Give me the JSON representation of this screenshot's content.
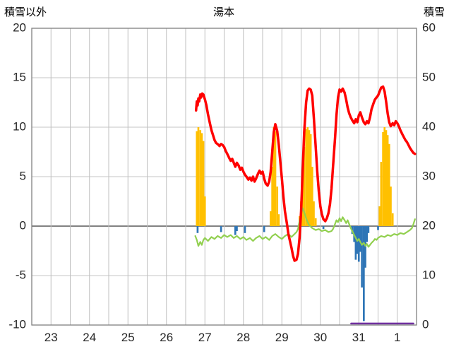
{
  "chart_data": {
    "type": "line",
    "title": "湯本",
    "left_axis": {
      "label": "積雪以外",
      "min": -10,
      "max": 20,
      "ticks": [
        20,
        15,
        10,
        5,
        0,
        -5,
        -10
      ]
    },
    "right_axis": {
      "label": "積雪",
      "min": 0,
      "max": 60,
      "ticks": [
        60,
        50,
        40,
        30,
        20,
        10,
        0
      ]
    },
    "x_axis": {
      "min": 23,
      "max": 33,
      "tick_labels": [
        "23",
        "24",
        "25",
        "26",
        "27",
        "28",
        "29",
        "30",
        "31",
        "1"
      ],
      "gridline_step": 0.5
    },
    "series": [
      {
        "name": "sunshine-bars",
        "type": "bar",
        "color": "#FFC000",
        "points": [
          [
            27.29,
            9.6
          ],
          [
            27.33,
            10.0
          ],
          [
            27.38,
            9.7
          ],
          [
            27.42,
            9.4
          ],
          [
            27.46,
            8.6
          ],
          [
            27.5,
            3.0
          ],
          [
            29.21,
            1.5
          ],
          [
            29.25,
            6.0
          ],
          [
            29.29,
            10.0
          ],
          [
            29.33,
            9.6
          ],
          [
            29.38,
            4.0
          ],
          [
            29.42,
            1.2
          ],
          [
            29.96,
            1.0
          ],
          [
            30.0,
            2.5
          ],
          [
            30.04,
            5.0
          ],
          [
            30.08,
            8.0
          ],
          [
            30.13,
            9.8
          ],
          [
            30.17,
            10.0
          ],
          [
            30.21,
            9.7
          ],
          [
            30.25,
            9.3
          ],
          [
            30.29,
            6.0
          ],
          [
            30.33,
            2.5
          ],
          [
            30.38,
            0.8
          ],
          [
            32.04,
            2.0
          ],
          [
            32.08,
            6.5
          ],
          [
            32.13,
            9.5
          ],
          [
            32.17,
            10.0
          ],
          [
            32.21,
            9.7
          ],
          [
            32.25,
            9.2
          ],
          [
            32.29,
            8.3
          ],
          [
            32.33,
            4.0
          ],
          [
            32.38,
            1.3
          ]
        ]
      },
      {
        "name": "precipitation-bars",
        "type": "bar",
        "color": "#2E75B6",
        "points": [
          [
            27.31,
            -0.7
          ],
          [
            27.92,
            -0.6
          ],
          [
            28.29,
            -0.9
          ],
          [
            28.33,
            -0.5
          ],
          [
            28.54,
            -0.7
          ],
          [
            29.04,
            -0.6
          ],
          [
            30.58,
            -0.3
          ],
          [
            31.33,
            -0.8
          ],
          [
            31.38,
            -1.6
          ],
          [
            31.42,
            -3.4
          ],
          [
            31.46,
            -2.8
          ],
          [
            31.5,
            -3.6
          ],
          [
            31.54,
            -2.6
          ],
          [
            31.58,
            -6.2
          ],
          [
            31.63,
            -9.6
          ],
          [
            31.67,
            -4.2
          ],
          [
            31.71,
            -1.6
          ],
          [
            31.75,
            -0.7
          ],
          [
            32.0,
            -0.4
          ]
        ]
      },
      {
        "name": "green-line",
        "type": "line",
        "color": "#92D050",
        "width": 2.2,
        "points": [
          [
            27.25,
            -1.0
          ],
          [
            27.29,
            -1.4
          ],
          [
            27.33,
            -2.0
          ],
          [
            27.38,
            -1.6
          ],
          [
            27.42,
            -1.9
          ],
          [
            27.46,
            -1.4
          ],
          [
            27.5,
            -1.2
          ],
          [
            27.58,
            -1.5
          ],
          [
            27.67,
            -1.1
          ],
          [
            27.75,
            -1.3
          ],
          [
            27.83,
            -1.0
          ],
          [
            27.92,
            -1.2
          ],
          [
            28.0,
            -0.9
          ],
          [
            28.08,
            -1.1
          ],
          [
            28.17,
            -0.9
          ],
          [
            28.25,
            -1.2
          ],
          [
            28.33,
            -1.0
          ],
          [
            28.42,
            -1.3
          ],
          [
            28.5,
            -1.1
          ],
          [
            28.58,
            -1.4
          ],
          [
            28.67,
            -1.2
          ],
          [
            28.75,
            -1.5
          ],
          [
            28.83,
            -1.2
          ],
          [
            28.92,
            -1.0
          ],
          [
            29.0,
            -1.3
          ],
          [
            29.08,
            -1.1
          ],
          [
            29.17,
            -1.4
          ],
          [
            29.25,
            -1.0
          ],
          [
            29.33,
            -0.8
          ],
          [
            29.42,
            -1.1
          ],
          [
            29.5,
            -1.3
          ],
          [
            29.58,
            -1.0
          ],
          [
            29.67,
            -0.8
          ],
          [
            29.75,
            -1.1
          ],
          [
            29.83,
            -0.8
          ],
          [
            29.88,
            -0.6
          ],
          [
            29.92,
            -0.3
          ],
          [
            29.96,
            0.5
          ],
          [
            30.0,
            1.3
          ],
          [
            30.04,
            1.8
          ],
          [
            30.08,
            1.4
          ],
          [
            30.13,
            0.8
          ],
          [
            30.17,
            0.4
          ],
          [
            30.21,
            0.1
          ],
          [
            30.29,
            -0.2
          ],
          [
            30.38,
            -0.4
          ],
          [
            30.46,
            -0.3
          ],
          [
            30.54,
            -0.5
          ],
          [
            30.63,
            -0.4
          ],
          [
            30.71,
            -0.6
          ],
          [
            30.79,
            -0.5
          ],
          [
            30.83,
            -0.3
          ],
          [
            30.88,
            0.2
          ],
          [
            30.92,
            0.6
          ],
          [
            30.96,
            0.4
          ],
          [
            31.0,
            0.8
          ],
          [
            31.04,
            0.5
          ],
          [
            31.08,
            0.9
          ],
          [
            31.13,
            0.6
          ],
          [
            31.17,
            0.3
          ],
          [
            31.21,
            0.6
          ],
          [
            31.25,
            0.2
          ],
          [
            31.29,
            -0.2
          ],
          [
            31.33,
            -0.5
          ],
          [
            31.38,
            -0.9
          ],
          [
            31.42,
            -1.2
          ],
          [
            31.46,
            -1.5
          ],
          [
            31.5,
            -1.3
          ],
          [
            31.54,
            -1.6
          ],
          [
            31.58,
            -1.9
          ],
          [
            31.63,
            -1.7
          ],
          [
            31.67,
            -2.0
          ],
          [
            31.71,
            -1.8
          ],
          [
            31.75,
            -2.1
          ],
          [
            31.79,
            -1.9
          ],
          [
            31.83,
            -1.7
          ],
          [
            31.88,
            -1.5
          ],
          [
            31.92,
            -1.3
          ],
          [
            31.96,
            -1.4
          ],
          [
            32.0,
            -1.2
          ],
          [
            32.08,
            -1.0
          ],
          [
            32.17,
            -1.1
          ],
          [
            32.25,
            -0.9
          ],
          [
            32.33,
            -1.0
          ],
          [
            32.42,
            -0.8
          ],
          [
            32.5,
            -0.9
          ],
          [
            32.58,
            -0.7
          ],
          [
            32.67,
            -0.8
          ],
          [
            32.75,
            -0.6
          ],
          [
            32.83,
            -0.4
          ],
          [
            32.88,
            -0.2
          ],
          [
            32.92,
            0.2
          ],
          [
            32.96,
            0.7
          ]
        ]
      },
      {
        "name": "snow-depth-line",
        "type": "line",
        "color": "#7030A0",
        "width": 2.5,
        "points": [
          [
            31.3,
            -9.85
          ],
          [
            32.92,
            -9.85
          ]
        ]
      },
      {
        "name": "temperature-line",
        "type": "line",
        "color": "#FF0000",
        "width": 3.5,
        "points": [
          [
            27.27,
            11.7
          ],
          [
            27.29,
            12.6
          ],
          [
            27.31,
            12.2
          ],
          [
            27.33,
            12.9
          ],
          [
            27.35,
            12.6
          ],
          [
            27.38,
            13.3
          ],
          [
            27.4,
            13.0
          ],
          [
            27.43,
            13.4
          ],
          [
            27.46,
            13.3
          ],
          [
            27.5,
            12.8
          ],
          [
            27.54,
            12.2
          ],
          [
            27.58,
            11.3
          ],
          [
            27.63,
            10.4
          ],
          [
            27.67,
            9.7
          ],
          [
            27.71,
            9.2
          ],
          [
            27.75,
            8.7
          ],
          [
            27.79,
            8.4
          ],
          [
            27.83,
            8.3
          ],
          [
            27.88,
            8.1
          ],
          [
            27.92,
            8.3
          ],
          [
            27.96,
            8.2
          ],
          [
            28.0,
            8.0
          ],
          [
            28.04,
            7.6
          ],
          [
            28.08,
            7.3
          ],
          [
            28.13,
            6.9
          ],
          [
            28.17,
            6.6
          ],
          [
            28.21,
            6.8
          ],
          [
            28.25,
            6.4
          ],
          [
            28.29,
            6.0
          ],
          [
            28.33,
            6.4
          ],
          [
            28.38,
            6.1
          ],
          [
            28.42,
            5.7
          ],
          [
            28.46,
            5.9
          ],
          [
            28.5,
            5.5
          ],
          [
            28.54,
            5.2
          ],
          [
            28.58,
            5.0
          ],
          [
            28.63,
            4.7
          ],
          [
            28.67,
            4.9
          ],
          [
            28.71,
            4.6
          ],
          [
            28.75,
            5.0
          ],
          [
            28.79,
            4.5
          ],
          [
            28.83,
            4.8
          ],
          [
            28.88,
            5.3
          ],
          [
            28.92,
            5.6
          ],
          [
            28.96,
            5.3
          ],
          [
            29.0,
            5.5
          ],
          [
            29.04,
            4.8
          ],
          [
            29.08,
            4.3
          ],
          [
            29.13,
            4.1
          ],
          [
            29.17,
            4.5
          ],
          [
            29.21,
            5.5
          ],
          [
            29.25,
            7.5
          ],
          [
            29.29,
            9.5
          ],
          [
            29.33,
            10.3
          ],
          [
            29.38,
            9.6
          ],
          [
            29.42,
            8.2
          ],
          [
            29.46,
            6.5
          ],
          [
            29.5,
            4.8
          ],
          [
            29.54,
            3.0
          ],
          [
            29.58,
            1.5
          ],
          [
            29.63,
            0.3
          ],
          [
            29.67,
            -0.8
          ],
          [
            29.71,
            -1.5
          ],
          [
            29.75,
            -2.2
          ],
          [
            29.79,
            -3.0
          ],
          [
            29.83,
            -3.5
          ],
          [
            29.88,
            -3.4
          ],
          [
            29.92,
            -2.8
          ],
          [
            29.96,
            -1.2
          ],
          [
            30.0,
            1.5
          ],
          [
            30.04,
            5.5
          ],
          [
            30.08,
            9.5
          ],
          [
            30.13,
            12.5
          ],
          [
            30.17,
            13.7
          ],
          [
            30.21,
            13.9
          ],
          [
            30.25,
            13.8
          ],
          [
            30.29,
            13.2
          ],
          [
            30.33,
            11.0
          ],
          [
            30.38,
            8.0
          ],
          [
            30.42,
            5.5
          ],
          [
            30.46,
            3.5
          ],
          [
            30.5,
            2.0
          ],
          [
            30.54,
            1.2
          ],
          [
            30.58,
            0.7
          ],
          [
            30.63,
            0.5
          ],
          [
            30.67,
            0.8
          ],
          [
            30.71,
            1.3
          ],
          [
            30.75,
            2.2
          ],
          [
            30.79,
            3.8
          ],
          [
            30.83,
            6.0
          ],
          [
            30.88,
            8.8
          ],
          [
            30.92,
            11.2
          ],
          [
            30.96,
            13.0
          ],
          [
            31.0,
            13.8
          ],
          [
            31.04,
            13.6
          ],
          [
            31.08,
            13.9
          ],
          [
            31.13,
            13.5
          ],
          [
            31.17,
            12.8
          ],
          [
            31.21,
            12.0
          ],
          [
            31.25,
            11.4
          ],
          [
            31.29,
            11.0
          ],
          [
            31.33,
            10.7
          ],
          [
            31.38,
            10.4
          ],
          [
            31.42,
            10.8
          ],
          [
            31.46,
            10.5
          ],
          [
            31.5,
            11.2
          ],
          [
            31.54,
            11.5
          ],
          [
            31.58,
            11.0
          ],
          [
            31.63,
            10.5
          ],
          [
            31.67,
            10.3
          ],
          [
            31.71,
            10.6
          ],
          [
            31.75,
            10.4
          ],
          [
            31.79,
            11.0
          ],
          [
            31.83,
            11.8
          ],
          [
            31.88,
            12.4
          ],
          [
            31.92,
            12.8
          ],
          [
            31.96,
            13.0
          ],
          [
            32.0,
            13.2
          ],
          [
            32.04,
            13.6
          ],
          [
            32.08,
            14.0
          ],
          [
            32.13,
            14.1
          ],
          [
            32.17,
            13.6
          ],
          [
            32.21,
            12.6
          ],
          [
            32.25,
            11.4
          ],
          [
            32.29,
            10.5
          ],
          [
            32.33,
            10.1
          ],
          [
            32.38,
            10.4
          ],
          [
            32.42,
            10.2
          ],
          [
            32.46,
            10.6
          ],
          [
            32.5,
            10.4
          ],
          [
            32.54,
            10.1
          ],
          [
            32.58,
            9.7
          ],
          [
            32.63,
            9.3
          ],
          [
            32.67,
            9.0
          ],
          [
            32.71,
            8.7
          ],
          [
            32.75,
            8.5
          ],
          [
            32.79,
            8.2
          ],
          [
            32.83,
            7.9
          ],
          [
            32.88,
            7.6
          ],
          [
            32.92,
            7.4
          ],
          [
            32.96,
            7.3
          ]
        ]
      }
    ]
  }
}
